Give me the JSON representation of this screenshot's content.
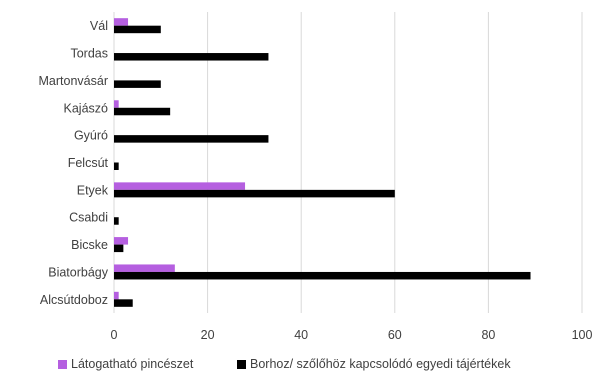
{
  "chart_data": {
    "type": "bar",
    "orientation": "horizontal",
    "categories": [
      "Vál",
      "Tordas",
      "Martonvásár",
      "Kajászó",
      "Gyúró",
      "Felcsút",
      "Etyek",
      "Csabdi",
      "Bicske",
      "Biatorbágy",
      "Alcsútdoboz"
    ],
    "series": [
      {
        "name": "Látogatható pincészet",
        "color": "#b55fe0",
        "values": [
          3,
          0,
          0,
          1,
          0,
          0,
          28,
          0,
          3,
          13,
          1
        ]
      },
      {
        "name": "Borhoz/ szőlőhöz kapcsolódó egyedi tájértékek",
        "color": "#000000",
        "values": [
          10,
          33,
          10,
          12,
          33,
          1,
          60,
          1,
          2,
          89,
          4
        ]
      }
    ],
    "xlim": [
      0,
      100
    ],
    "xticks": [
      0,
      20,
      40,
      60,
      80,
      100
    ],
    "grid": "vertical",
    "legend_position": "bottom"
  }
}
